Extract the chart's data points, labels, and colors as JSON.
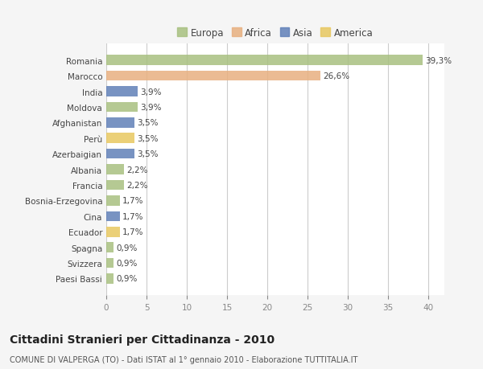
{
  "countries": [
    "Romania",
    "Marocco",
    "India",
    "Moldova",
    "Afghanistan",
    "Perù",
    "Azerbaigian",
    "Albania",
    "Francia",
    "Bosnia-Erzegovina",
    "Cina",
    "Ecuador",
    "Spagna",
    "Svizzera",
    "Paesi Bassi"
  ],
  "values": [
    39.3,
    26.6,
    3.9,
    3.9,
    3.5,
    3.5,
    3.5,
    2.2,
    2.2,
    1.7,
    1.7,
    1.7,
    0.9,
    0.9,
    0.9
  ],
  "labels": [
    "39,3%",
    "26,6%",
    "3,9%",
    "3,9%",
    "3,5%",
    "3,5%",
    "3,5%",
    "2,2%",
    "2,2%",
    "1,7%",
    "1,7%",
    "1,7%",
    "0,9%",
    "0,9%",
    "0,9%"
  ],
  "colors": [
    "#a8c080",
    "#e8b080",
    "#6080b8",
    "#a8c080",
    "#6080b8",
    "#e8c860",
    "#6080b8",
    "#a8c080",
    "#a8c080",
    "#a8c080",
    "#6080b8",
    "#e8c860",
    "#a8c080",
    "#a8c080",
    "#a8c080"
  ],
  "legend_labels": [
    "Europa",
    "Africa",
    "Asia",
    "America"
  ],
  "legend_colors": [
    "#a8c080",
    "#e8b080",
    "#6080b8",
    "#e8c860"
  ],
  "title": "Cittadini Stranieri per Cittadinanza - 2010",
  "subtitle": "COMUNE DI VALPERGA (TO) - Dati ISTAT al 1° gennaio 2010 - Elaborazione TUTTITALIA.IT",
  "xlim": [
    0,
    42
  ],
  "xticks": [
    0,
    5,
    10,
    15,
    20,
    25,
    30,
    35,
    40
  ],
  "background_color": "#f5f5f5",
  "plot_bg_color": "#ffffff",
  "grid_color": "#cccccc",
  "bar_height": 0.65,
  "label_fontsize": 7.5,
  "tick_fontsize": 7.5,
  "title_fontsize": 10,
  "subtitle_fontsize": 7
}
